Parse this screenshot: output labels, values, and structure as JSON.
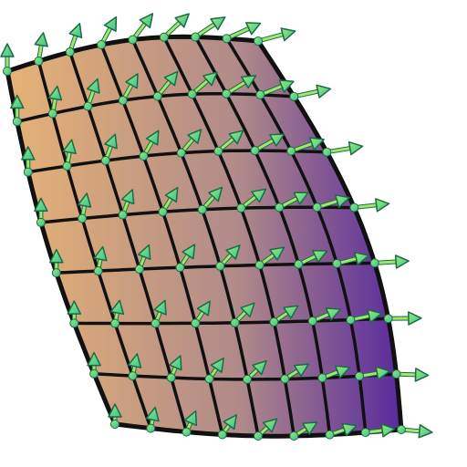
{
  "illustration": {
    "subject": "curved-surface-grid-with-normal-vectors",
    "colors": {
      "surface_left": "#E4B176",
      "surface_mid": "#B08A8A",
      "surface_right": "#4F1F9E",
      "grid_line": "#111111",
      "arrow_light": "#9FE870",
      "arrow_dark": "#35C39C",
      "arrow_outline": "#1B6B45"
    }
  }
}
